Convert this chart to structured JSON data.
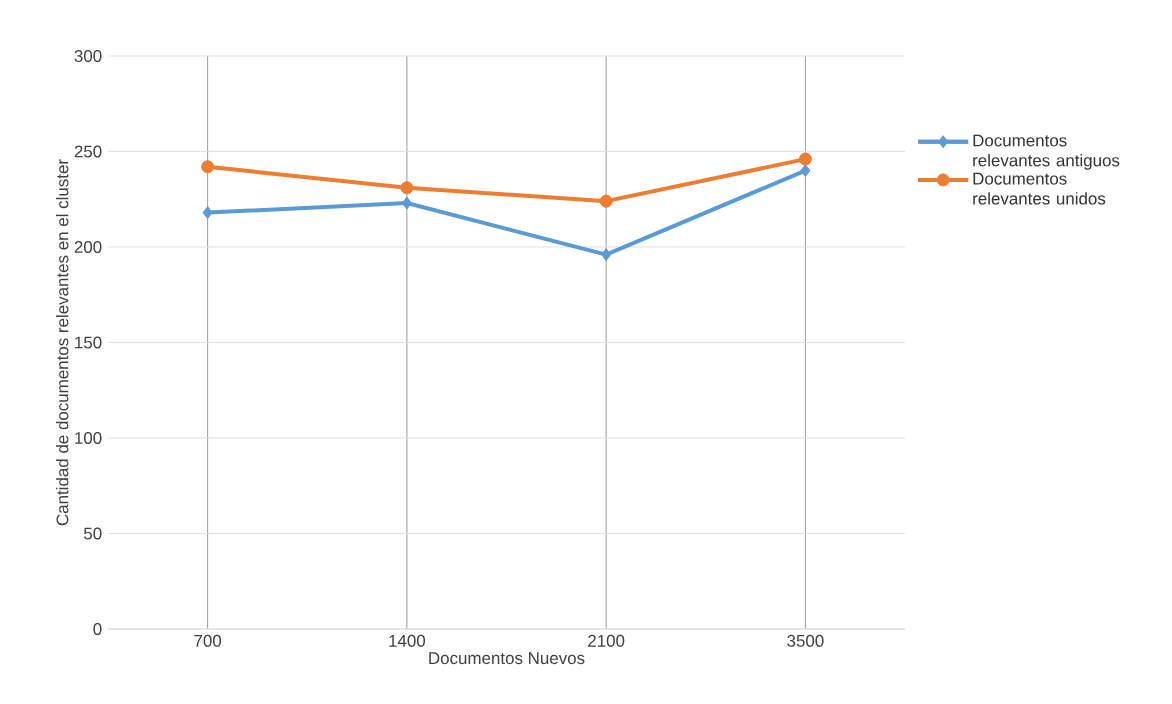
{
  "chart_data": {
    "type": "line",
    "xlabel": "Documentos Nuevos",
    "ylabel": "Cantidad de documentos relevantes en el cluster",
    "categories": [
      "700",
      "1400",
      "2100",
      "3500"
    ],
    "series": [
      {
        "name": "Documentos relevantes antiguos",
        "color": "#5b9bd5",
        "marker": "diamond",
        "values": [
          218,
          223,
          196,
          240
        ]
      },
      {
        "name": "Documentos relevantes unidos",
        "color": "#ed7d31",
        "marker": "circle",
        "values": [
          242,
          231,
          224,
          246
        ]
      }
    ],
    "ylim": [
      0,
      300
    ],
    "yticks": [
      0,
      50,
      100,
      150,
      200,
      250,
      300
    ],
    "grid": true,
    "legend": "right",
    "line_style": "solid"
  }
}
